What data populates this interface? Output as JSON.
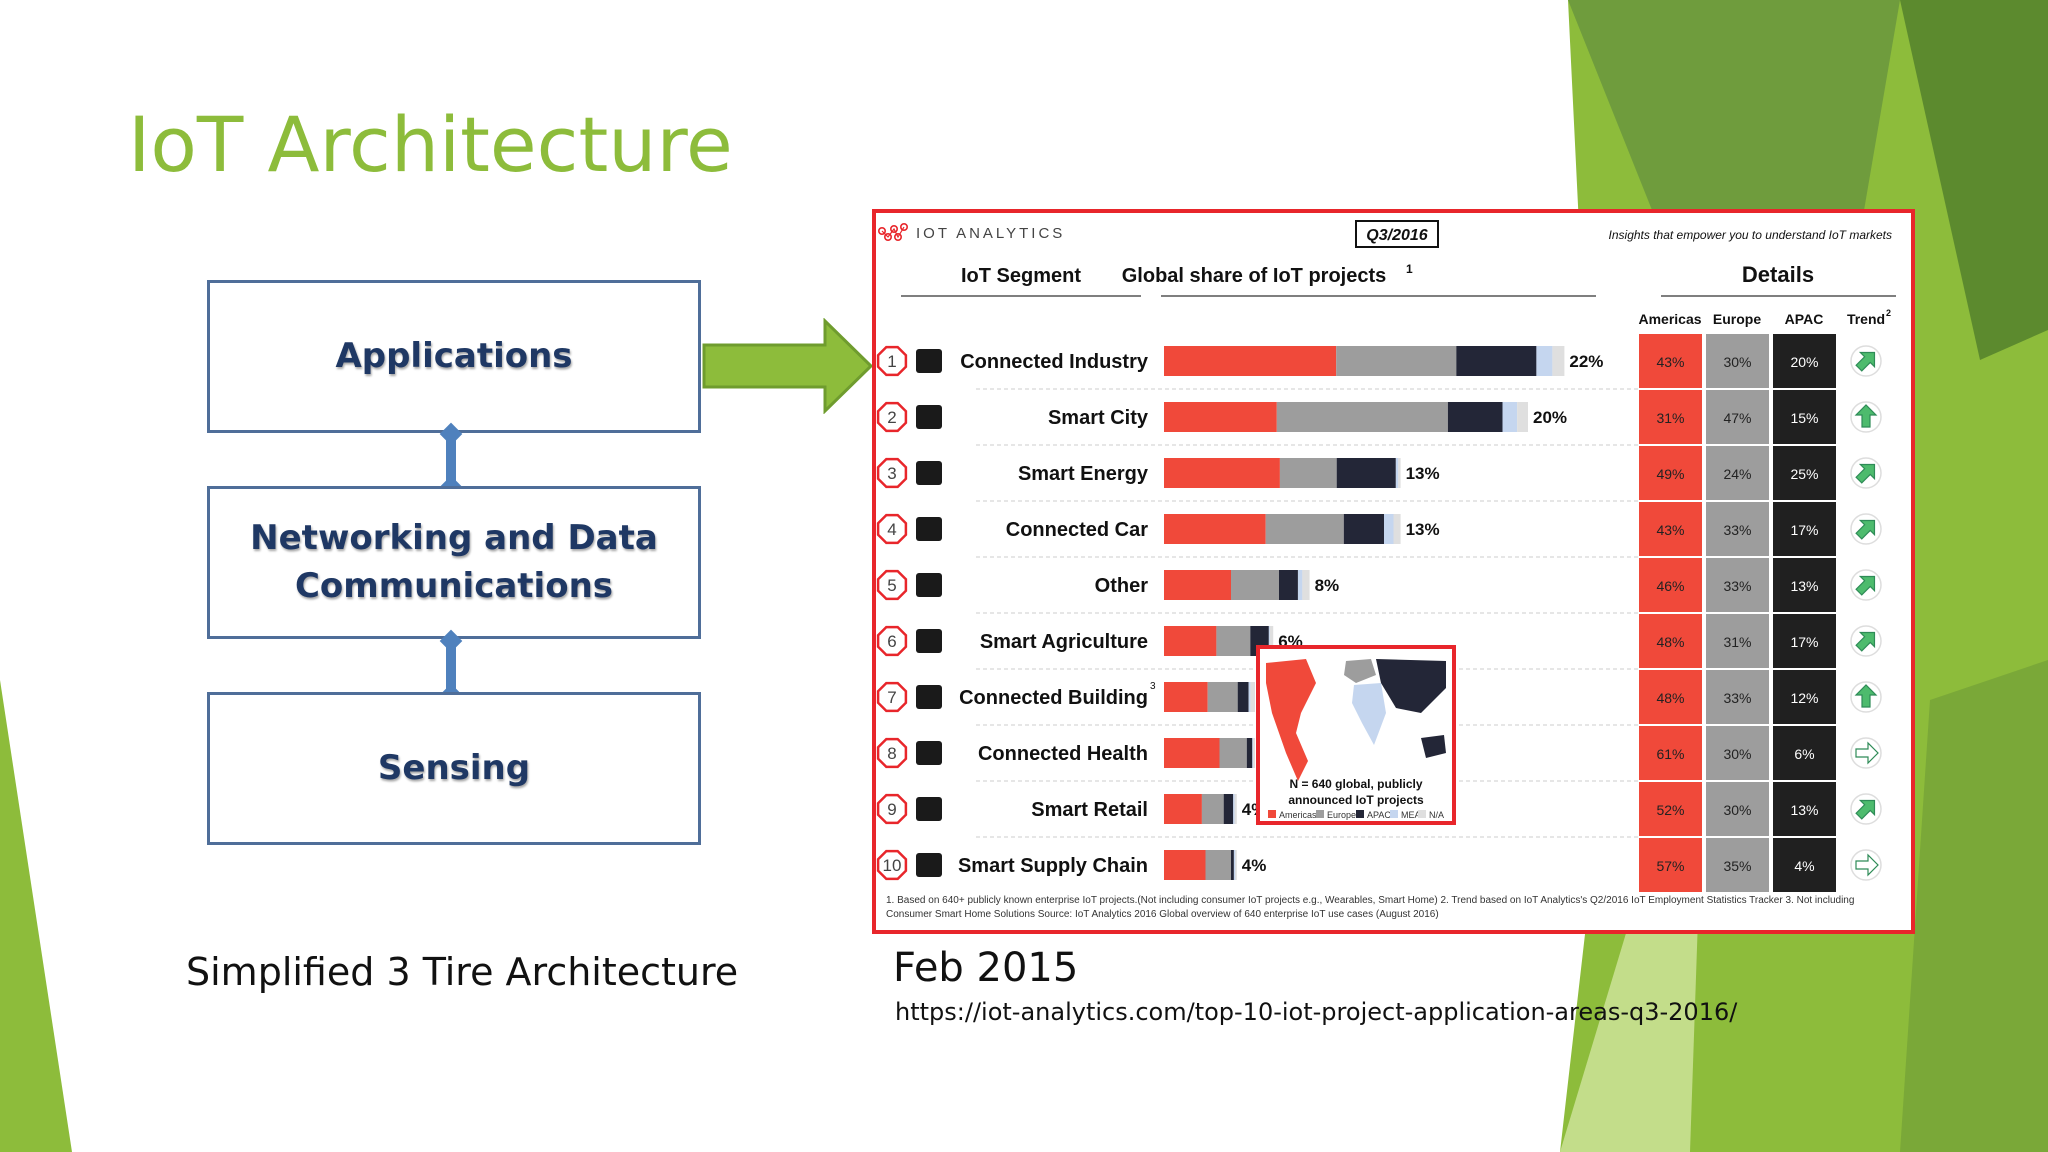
{
  "slide": {
    "title": "IoT Architecture",
    "caption": "Simplified 3 Tire Architecture",
    "date": "Feb 2015",
    "url": "https://iot-analytics.com/top-10-iot-project-application-areas-q3-2016/"
  },
  "tiers": [
    {
      "label": "Applications"
    },
    {
      "label": "Networking and Data Communications"
    },
    {
      "label": "Sensing"
    }
  ],
  "colors": {
    "accent": "#8dbc3b",
    "tier_border": "#4f6e99",
    "tier_text": "#1f3864",
    "americas": "#f0493a",
    "europe": "#9d9d9d",
    "apac": "#232637",
    "mea": "#c5d6ef",
    "na": "#dfdfdf"
  },
  "chart_data": {
    "type": "bar",
    "brand": "IOT ANALYTICS",
    "period": "Q3/2016",
    "tagline": "Insights that empower you to understand IoT markets",
    "header_segment": "IoT Segment",
    "header_share": "Global share of IoT projects",
    "header_share_sup": "1",
    "header_details": "Details",
    "detail_columns": [
      "Americas",
      "Europe",
      "APAC",
      "Trend"
    ],
    "trend_sup": "2",
    "categories": [
      "Connected Industry",
      "Smart City",
      "Smart Energy",
      "Connected Car",
      "Other",
      "Smart Agriculture",
      "Connected Building",
      "Connected Health",
      "Smart Retail",
      "Smart Supply Chain"
    ],
    "ranks": [
      "1",
      "2",
      "3",
      "4",
      "5",
      "6",
      "7",
      "8",
      "9",
      "10"
    ],
    "superscripts": [
      "",
      "",
      "",
      "",
      "",
      "",
      "3",
      "",
      "",
      ""
    ],
    "icons": [
      "robot-arm-icon",
      "city-icon",
      "plug-icon",
      "car-icon",
      "share-icon",
      "cow-icon",
      "building-icon",
      "medkit-icon",
      "cart-icon",
      "globe-truck-icon"
    ],
    "totals": [
      22,
      20,
      13,
      13,
      8,
      6,
      5,
      5,
      4,
      4
    ],
    "total_labels": [
      "22%",
      "20%",
      "13%",
      "13%",
      "8%",
      "6%",
      "5%",
      "5%",
      "4%",
      "4%"
    ],
    "series": [
      {
        "name": "Americas",
        "values": [
          43,
          31,
          49,
          43,
          46,
          48,
          48,
          61,
          52,
          57
        ]
      },
      {
        "name": "Europe",
        "values": [
          30,
          47,
          24,
          33,
          33,
          31,
          33,
          30,
          30,
          35
        ]
      },
      {
        "name": "APAC",
        "values": [
          20,
          15,
          25,
          17,
          13,
          17,
          12,
          6,
          13,
          4
        ]
      },
      {
        "name": "MEA",
        "values": [
          4,
          4,
          1,
          4,
          3,
          1,
          2,
          1,
          2,
          2
        ]
      },
      {
        "name": "N/A",
        "values": [
          3,
          3,
          1,
          3,
          5,
          3,
          5,
          2,
          3,
          2
        ]
      }
    ],
    "detail_labels": {
      "americas": [
        "43%",
        "31%",
        "49%",
        "43%",
        "46%",
        "48%",
        "48%",
        "61%",
        "52%",
        "57%"
      ],
      "europe": [
        "30%",
        "47%",
        "24%",
        "33%",
        "33%",
        "31%",
        "33%",
        "30%",
        "30%",
        "35%"
      ],
      "apac": [
        "20%",
        "15%",
        "25%",
        "17%",
        "13%",
        "17%",
        "12%",
        "6%",
        "13%",
        "4%"
      ]
    },
    "trends": [
      "up-right",
      "up",
      "up-right",
      "up-right",
      "up-right",
      "up-right",
      "up",
      "right",
      "up-right",
      "right"
    ],
    "map": {
      "caption_1": "N = 640 global, publicly",
      "caption_2": "announced IoT projects",
      "legend": [
        "Americas",
        "Europe",
        "APAC",
        "MEA",
        "N/A"
      ]
    },
    "footnote_1": "1. Based on 640+ publicly known enterprise IoT projects.(Not including consumer IoT projects e.g., Wearables, Smart Home) 2. Trend based on IoT Analytics's Q2/2016 IoT Employment Statistics Tracker 3. Not including",
    "footnote_2": "Consumer Smart Home Solutions    Source: IoT Analytics 2016 Global overview of 640 enterprise IoT use cases (August 2016)"
  }
}
